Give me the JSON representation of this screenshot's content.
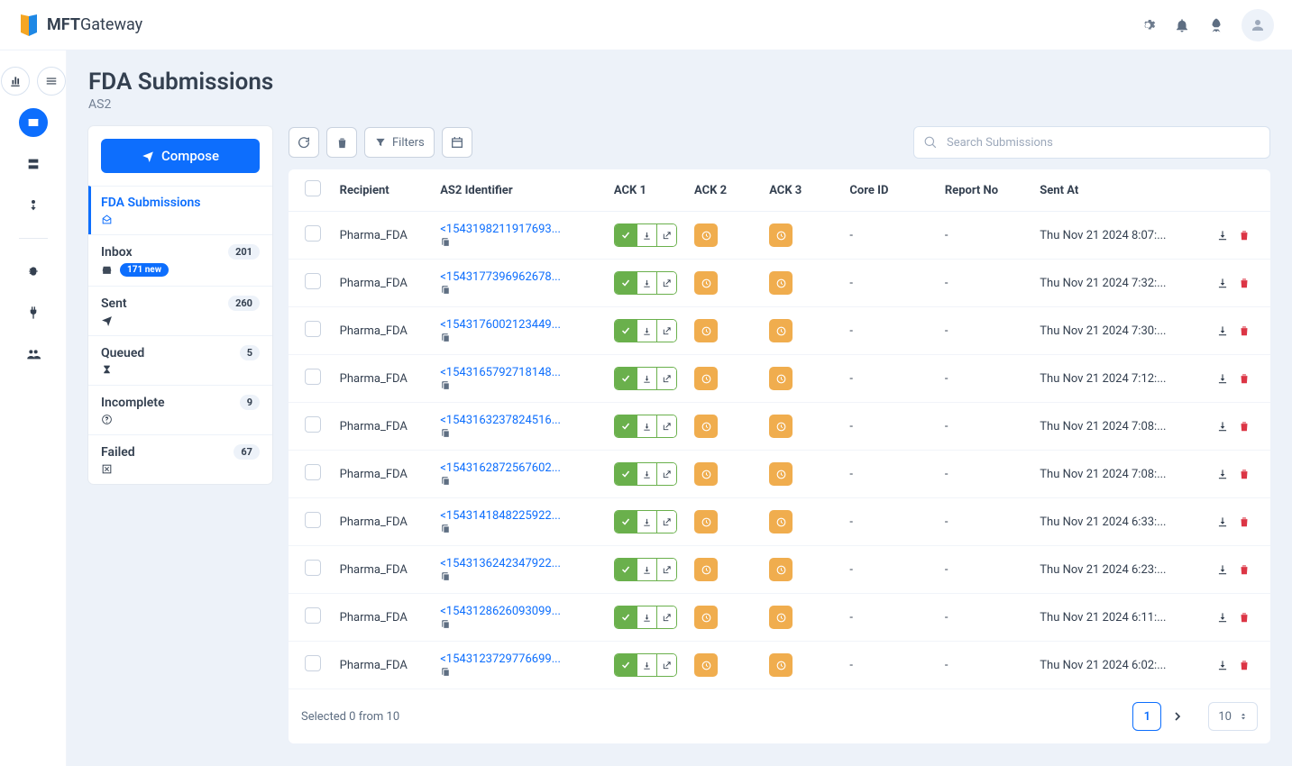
{
  "brand": {
    "name_bold": "MFT",
    "name_thin": "Gateway"
  },
  "page": {
    "title": "FDA Submissions",
    "subtitle": "AS2"
  },
  "compose_label": "Compose",
  "search_placeholder": "Search Submissions",
  "filters_label": "Filters",
  "folders": [
    {
      "label": "FDA Submissions",
      "active": true,
      "icon": "envelope-open"
    },
    {
      "label": "Inbox",
      "count": "201",
      "new_pill": "171 new",
      "icon": "inbox"
    },
    {
      "label": "Sent",
      "count": "260",
      "icon": "paper-plane"
    },
    {
      "label": "Queued",
      "count": "5",
      "icon": "hourglass"
    },
    {
      "label": "Incomplete",
      "count": "9",
      "icon": "question"
    },
    {
      "label": "Failed",
      "count": "67",
      "icon": "x-box"
    }
  ],
  "columns": {
    "recipient": "Recipient",
    "as2id": "AS2 Identifier",
    "ack1": "ACK 1",
    "ack2": "ACK 2",
    "ack3": "ACK 3",
    "coreid": "Core ID",
    "reportno": "Report No",
    "sentat": "Sent At"
  },
  "rows": [
    {
      "recipient": "Pharma_FDA",
      "as2id": "<1543198211917693...",
      "coreid": "-",
      "reportno": "-",
      "sentat": "Thu Nov 21 2024 8:07:..."
    },
    {
      "recipient": "Pharma_FDA",
      "as2id": "<1543177396962678...",
      "coreid": "-",
      "reportno": "-",
      "sentat": "Thu Nov 21 2024 7:32:..."
    },
    {
      "recipient": "Pharma_FDA",
      "as2id": "<1543176002123449...",
      "coreid": "-",
      "reportno": "-",
      "sentat": "Thu Nov 21 2024 7:30:..."
    },
    {
      "recipient": "Pharma_FDA",
      "as2id": "<1543165792718148...",
      "coreid": "-",
      "reportno": "-",
      "sentat": "Thu Nov 21 2024 7:12:..."
    },
    {
      "recipient": "Pharma_FDA",
      "as2id": "<1543163237824516...",
      "coreid": "-",
      "reportno": "-",
      "sentat": "Thu Nov 21 2024 7:08:..."
    },
    {
      "recipient": "Pharma_FDA",
      "as2id": "<1543162872567602...",
      "coreid": "-",
      "reportno": "-",
      "sentat": "Thu Nov 21 2024 7:08:..."
    },
    {
      "recipient": "Pharma_FDA",
      "as2id": "<1543141848225922...",
      "coreid": "-",
      "reportno": "-",
      "sentat": "Thu Nov 21 2024 6:33:..."
    },
    {
      "recipient": "Pharma_FDA",
      "as2id": "<1543136242347922...",
      "coreid": "-",
      "reportno": "-",
      "sentat": "Thu Nov 21 2024 6:23:..."
    },
    {
      "recipient": "Pharma_FDA",
      "as2id": "<1543128626093099...",
      "coreid": "-",
      "reportno": "-",
      "sentat": "Thu Nov 21 2024 6:11:..."
    },
    {
      "recipient": "Pharma_FDA",
      "as2id": "<1543123729776699...",
      "coreid": "-",
      "reportno": "-",
      "sentat": "Thu Nov 21 2024 6:02:..."
    }
  ],
  "footer": {
    "selected_text": "Selected 0 from 10",
    "page": "1",
    "page_size": "10"
  },
  "colors": {
    "primary": "#0d6efd",
    "bg": "#edf2f9",
    "success": "#6ab04c",
    "warning": "#f0ad4e",
    "danger": "#dc3545",
    "text": "#344050",
    "muted": "#748194"
  }
}
